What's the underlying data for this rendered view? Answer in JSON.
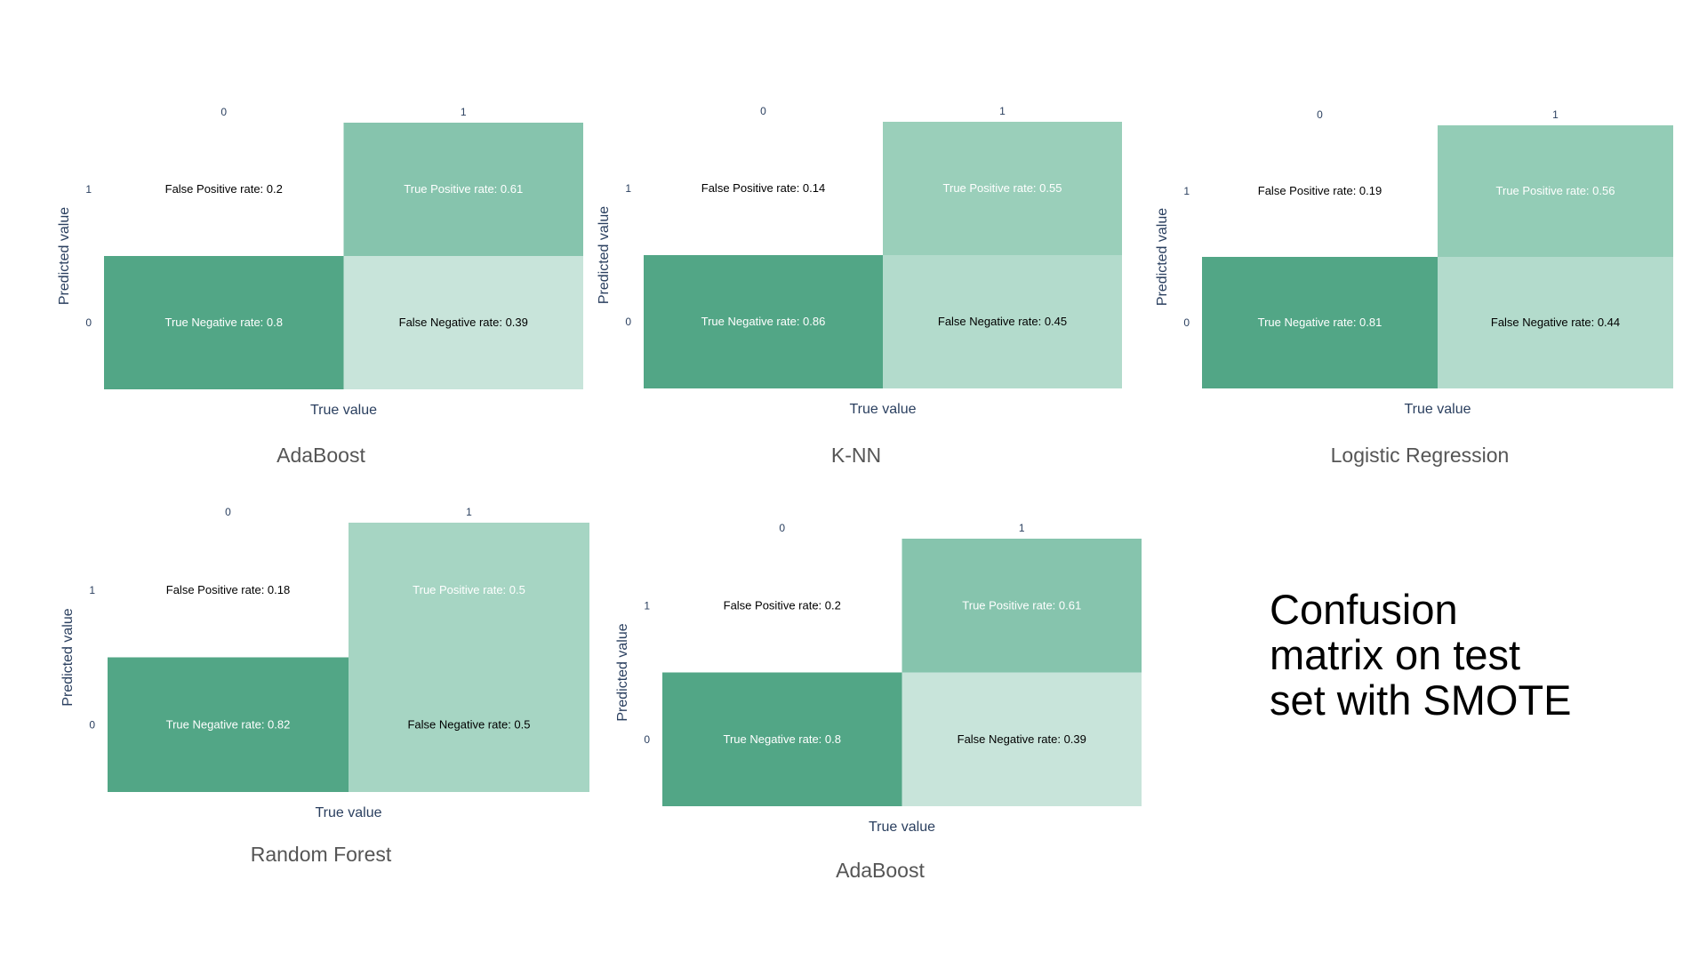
{
  "title": "Confusion\nmatrix on test\nset with SMOTE",
  "chart_data": [
    {
      "type": "heatmap",
      "caption": "AdaBoost",
      "xlabel": "True value",
      "ylabel": "Predicted value",
      "x_ticks": [
        "0",
        "1"
      ],
      "y_ticks": [
        "1",
        "0"
      ],
      "cells": [
        {
          "true": "0",
          "pred": "1",
          "label": "False Positive rate: 0.2",
          "value": 0.2,
          "color": "#ffffff",
          "text_color": "#000000"
        },
        {
          "true": "1",
          "pred": "1",
          "label": "True Positive rate: 0.61",
          "value": 0.61,
          "color": "#86c4ad",
          "text_color": "#ffffff"
        },
        {
          "true": "0",
          "pred": "0",
          "label": "True Negative rate: 0.8",
          "value": 0.8,
          "color": "#52a686",
          "text_color": "#ffffff"
        },
        {
          "true": "1",
          "pred": "0",
          "label": "False Negative rate: 0.39",
          "value": 0.39,
          "color": "#c8e4da",
          "text_color": "#000000"
        }
      ]
    },
    {
      "type": "heatmap",
      "caption": "K-NN",
      "xlabel": "True value",
      "ylabel": "Predicted value",
      "x_ticks": [
        "0",
        "1"
      ],
      "y_ticks": [
        "1",
        "0"
      ],
      "cells": [
        {
          "true": "0",
          "pred": "1",
          "label": "False Positive rate: 0.14",
          "value": 0.14,
          "color": "#ffffff",
          "text_color": "#000000"
        },
        {
          "true": "1",
          "pred": "1",
          "label": "True Positive rate: 0.55",
          "value": 0.55,
          "color": "#9acfba",
          "text_color": "#ffffff"
        },
        {
          "true": "0",
          "pred": "0",
          "label": "True Negative rate: 0.86",
          "value": 0.86,
          "color": "#52a686",
          "text_color": "#ffffff"
        },
        {
          "true": "1",
          "pred": "0",
          "label": "False Negative rate: 0.45",
          "value": 0.45,
          "color": "#b3dbcc",
          "text_color": "#000000"
        }
      ]
    },
    {
      "type": "heatmap",
      "caption": "Logistic Regression",
      "xlabel": "True value",
      "ylabel": "Predicted value",
      "x_ticks": [
        "0",
        "1"
      ],
      "y_ticks": [
        "1",
        "0"
      ],
      "cells": [
        {
          "true": "0",
          "pred": "1",
          "label": "False Positive rate: 0.19",
          "value": 0.19,
          "color": "#ffffff",
          "text_color": "#000000"
        },
        {
          "true": "1",
          "pred": "1",
          "label": "True Positive rate: 0.56",
          "value": 0.56,
          "color": "#93ccb6",
          "text_color": "#ffffff"
        },
        {
          "true": "0",
          "pred": "0",
          "label": "True Negative rate: 0.81",
          "value": 0.81,
          "color": "#52a686",
          "text_color": "#ffffff"
        },
        {
          "true": "1",
          "pred": "0",
          "label": "False Negative rate: 0.44",
          "value": 0.44,
          "color": "#b3dbcc",
          "text_color": "#000000"
        }
      ]
    },
    {
      "type": "heatmap",
      "caption": "Random Forest",
      "xlabel": "True value",
      "ylabel": "Predicted value",
      "x_ticks": [
        "0",
        "1"
      ],
      "y_ticks": [
        "1",
        "0"
      ],
      "cells": [
        {
          "true": "0",
          "pred": "1",
          "label": "False Positive rate: 0.18",
          "value": 0.18,
          "color": "#ffffff",
          "text_color": "#000000"
        },
        {
          "true": "1",
          "pred": "1",
          "label": "True Positive rate: 0.5",
          "value": 0.5,
          "color": "#a6d5c3",
          "text_color": "#ffffff"
        },
        {
          "true": "0",
          "pred": "0",
          "label": "True Negative rate: 0.82",
          "value": 0.82,
          "color": "#52a686",
          "text_color": "#ffffff"
        },
        {
          "true": "1",
          "pred": "0",
          "label": "False Negative rate: 0.5",
          "value": 0.5,
          "color": "#a6d5c3",
          "text_color": "#000000"
        }
      ]
    },
    {
      "type": "heatmap",
      "caption": "AdaBoost",
      "xlabel": "True value",
      "ylabel": "Predicted value",
      "x_ticks": [
        "0",
        "1"
      ],
      "y_ticks": [
        "1",
        "0"
      ],
      "cells": [
        {
          "true": "0",
          "pred": "1",
          "label": "False Positive rate: 0.2",
          "value": 0.2,
          "color": "#ffffff",
          "text_color": "#000000"
        },
        {
          "true": "1",
          "pred": "1",
          "label": "True Positive rate: 0.61",
          "value": 0.61,
          "color": "#86c4ad",
          "text_color": "#ffffff"
        },
        {
          "true": "0",
          "pred": "0",
          "label": "True Negative rate: 0.8",
          "value": 0.8,
          "color": "#52a686",
          "text_color": "#ffffff"
        },
        {
          "true": "1",
          "pred": "0",
          "label": "False Negative rate: 0.39",
          "value": 0.39,
          "color": "#c8e4da",
          "text_color": "#000000"
        }
      ]
    }
  ]
}
